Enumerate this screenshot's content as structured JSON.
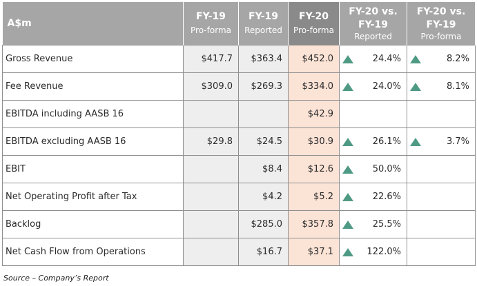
{
  "header": {
    "label": "A$m",
    "col1": {
      "title": "FY-19",
      "sub": "Pro-forma"
    },
    "col2": {
      "title": "FY-19",
      "sub": "Reported"
    },
    "col3": {
      "title": "FY-20",
      "sub": "Pro-forma"
    },
    "col4": {
      "title_line1": "FY-20  vs.",
      "title_line2": "FY-19",
      "sub": "Reported"
    },
    "col5": {
      "title_line1": "FY-20  vs.",
      "title_line2": "FY-19",
      "sub": "Pro-forma"
    }
  },
  "rows": [
    {
      "label": "Gross Revenue",
      "fy19_pf": "$417.7",
      "fy19_rep": "$363.4",
      "fy20_pf": "$452.0",
      "chg_rep": "24.4%",
      "chg_pf": "8.2%"
    },
    {
      "label": "Fee Revenue",
      "fy19_pf": "$309.0",
      "fy19_rep": "$269.3",
      "fy20_pf": "$334.0",
      "chg_rep": "24.0%",
      "chg_pf": "8.1%"
    },
    {
      "label": "EBITDA including AASB 16",
      "fy19_pf": "",
      "fy19_rep": "",
      "fy20_pf": "$42.9",
      "chg_rep": "",
      "chg_pf": ""
    },
    {
      "label": "EBITDA excluding AASB 16",
      "fy19_pf": "$29.8",
      "fy19_rep": "$24.5",
      "fy20_pf": "$30.9",
      "chg_rep": "26.1%",
      "chg_pf": "3.7%"
    },
    {
      "label": "EBIT",
      "fy19_pf": "",
      "fy19_rep": "$8.4",
      "fy20_pf": "$12.6",
      "chg_rep": "50.0%",
      "chg_pf": ""
    },
    {
      "label": "Net Operating Profit after Tax",
      "fy19_pf": "",
      "fy19_rep": "$4.2",
      "fy20_pf": "$5.2",
      "chg_rep": "22.6%",
      "chg_pf": ""
    },
    {
      "label": "Backlog",
      "fy19_pf": "",
      "fy19_rep": "$285.0",
      "fy20_pf": "$357.8",
      "chg_rep": "25.5%",
      "chg_pf": ""
    },
    {
      "label": "Net Cash Flow from Operations",
      "fy19_pf": "",
      "fy19_rep": "$16.7",
      "fy20_pf": "$37.1",
      "chg_rep": "122.0%",
      "chg_pf": ""
    }
  ],
  "indicator": {
    "icon": "up-triangle-icon",
    "color": "#4f9a84"
  },
  "source": "Source – Company’s Report"
}
